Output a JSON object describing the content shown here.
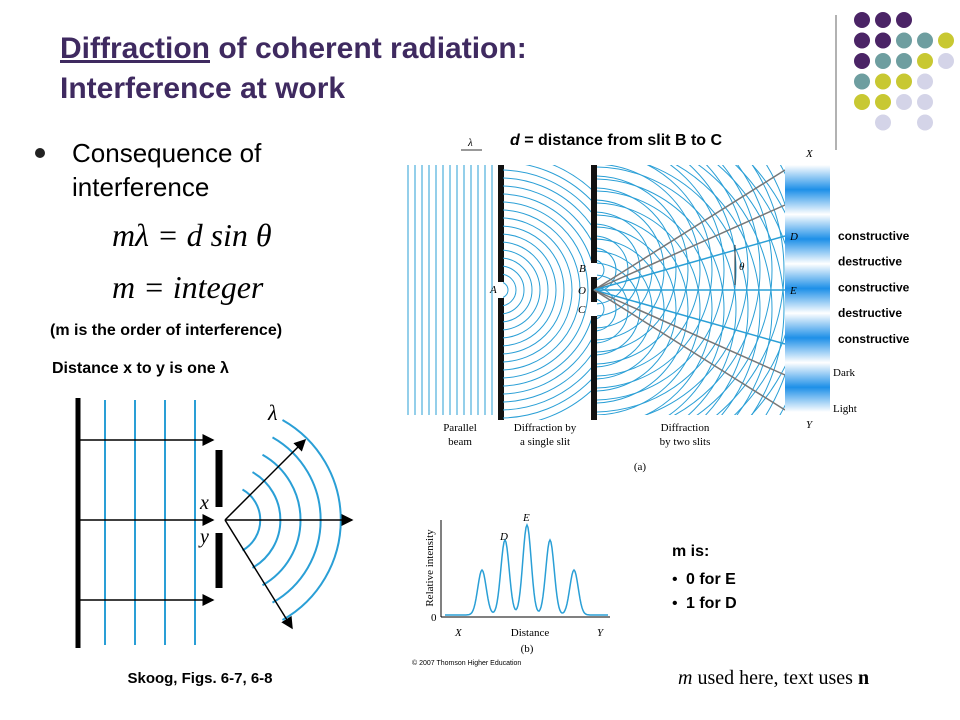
{
  "title": {
    "part1": "Diffraction",
    "part2": " of coherent radiation:",
    "line2": "Interference at work"
  },
  "bullet": [
    "Consequence of",
    "interference"
  ],
  "equations": [
    "mλ = d sin θ",
    "m = integer"
  ],
  "order_note": "(m is the order of interference)",
  "fig_left": {
    "caption": "Distance x to y is one λ",
    "lambda": "λ",
    "x": "x",
    "y": "y"
  },
  "credit": "Skoog, Figs. 6-7, 6-8",
  "fig_a": {
    "caption": {
      "d": "d",
      "rest": " = distance from slit B to C"
    },
    "labels": {
      "lambda": "λ",
      "A": "A",
      "B": "B",
      "O": "O",
      "C": "C",
      "X": "X",
      "D": "D",
      "theta": "θ",
      "E": "E",
      "Y": "Y",
      "dark": "Dark",
      "light": "Light",
      "a": "(a)"
    },
    "fringes": [
      "constructive",
      "destructive",
      "constructive",
      "destructive",
      "constructive"
    ],
    "panels": [
      [
        "Parallel",
        "beam"
      ],
      [
        "Diffraction by",
        "a single slit"
      ],
      [
        "Diffraction",
        "by two slits"
      ]
    ]
  },
  "fig_b": {
    "D": "D",
    "E": "E",
    "ylabel": "Relative intensity",
    "zero": "0",
    "X": "X",
    "distance": "Distance",
    "Y": "Y",
    "b": "(b)",
    "copyright": "© 2007 Thomson Higher Education"
  },
  "m_is": {
    "heading": "m is:",
    "items": [
      "0 for E",
      "1 for D"
    ]
  },
  "footer": {
    "m": "m",
    "middle": " used here, text uses ",
    "n": "n"
  }
}
